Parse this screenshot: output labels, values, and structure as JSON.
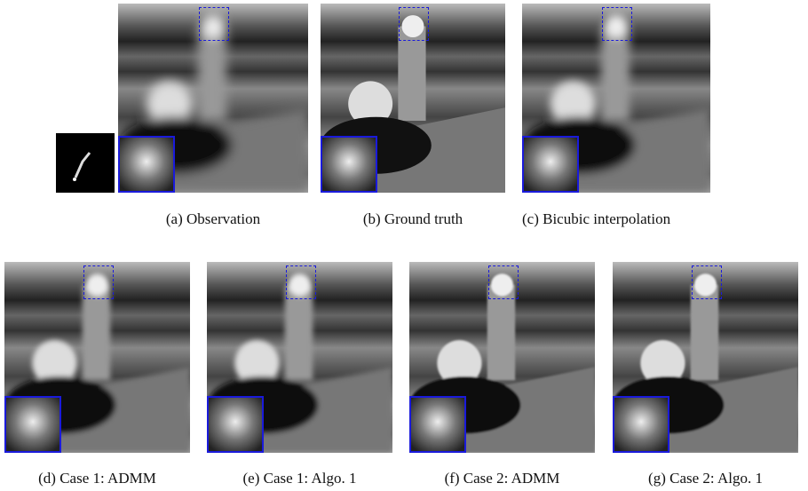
{
  "figure": {
    "panels": [
      {
        "caption": "(a) Observation"
      },
      {
        "caption": "(b) Ground truth"
      },
      {
        "caption": "(c) Bicubic interpolation"
      },
      {
        "caption": "(d) Case 1: ADMM"
      },
      {
        "caption": "(e) Case 1: Algo. 1"
      },
      {
        "caption": "(f) Case 2: ADMM"
      },
      {
        "caption": "(g) Case 2: Algo. 1"
      }
    ]
  }
}
